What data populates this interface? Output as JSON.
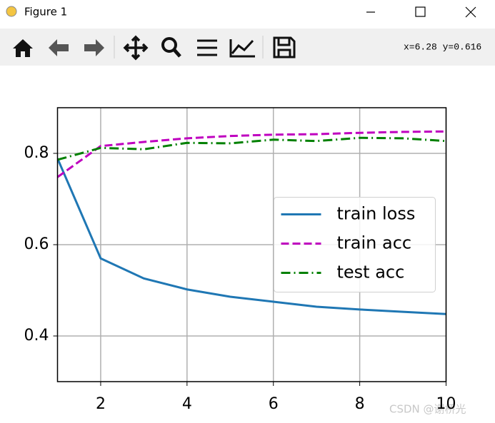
{
  "window": {
    "title": "Figure 1",
    "coordinates": "x=6.28 y=0.616",
    "watermark": "CSDN @谢桥光"
  },
  "chart_data": {
    "type": "line",
    "x": [
      1,
      2,
      3,
      4,
      5,
      6,
      7,
      8,
      9,
      10
    ],
    "series": [
      {
        "name": "train loss",
        "color": "#1f77b4",
        "dash": "solid",
        "values": [
          0.789,
          0.57,
          0.526,
          0.502,
          0.486,
          0.475,
          0.464,
          0.458,
          0.453,
          0.448
        ]
      },
      {
        "name": "train acc",
        "color": "#bf00bf",
        "dash": "dashed",
        "values": [
          0.748,
          0.816,
          0.825,
          0.833,
          0.838,
          0.841,
          0.842,
          0.845,
          0.847,
          0.848
        ]
      },
      {
        "name": "test acc",
        "color": "#008000",
        "dash": "dashdot",
        "values": [
          0.786,
          0.812,
          0.809,
          0.823,
          0.822,
          0.83,
          0.827,
          0.834,
          0.833,
          0.827
        ]
      }
    ],
    "xlim": [
      1,
      10
    ],
    "ylim": [
      0.3,
      0.9
    ],
    "xticks": [
      2,
      4,
      6,
      8,
      10
    ],
    "yticks": [
      0.4,
      0.6,
      0.8
    ],
    "grid": true,
    "legend": "center right"
  }
}
